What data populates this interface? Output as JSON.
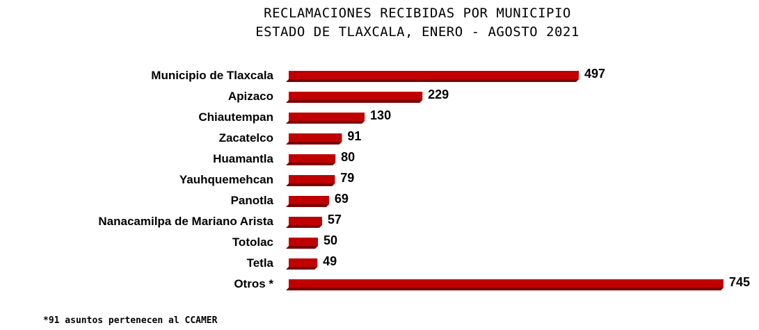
{
  "chart_data": {
    "type": "bar",
    "orientation": "horizontal",
    "title": "RECLAMACIONES RECIBIDAS POR MUNICIPIO",
    "subtitle": "ESTADO DE TLAXCALA, ENERO - AGOSTO 2021",
    "categories": [
      "Municipio de Tlaxcala",
      "Apizaco",
      "Chiautempan",
      "Zacatelco",
      "Huamantla",
      "Yauhquemehcan",
      "Panotla",
      "Nanacamilpa de Mariano Arista",
      "Totolac",
      "Tetla",
      "Otros *"
    ],
    "values": [
      497,
      229,
      130,
      91,
      80,
      79,
      69,
      57,
      50,
      49,
      745
    ],
    "value_labels": [
      "497",
      "229",
      "130",
      "91",
      "80",
      "79",
      "69",
      "57",
      "50",
      "49",
      "745"
    ],
    "xlim": [
      0,
      745
    ],
    "grid": false,
    "legend": "none",
    "bar_color": "#c00000",
    "bar_shadow_color": "#7a0000"
  },
  "footnote": "*91 asuntos pertenecen al CCAMER"
}
